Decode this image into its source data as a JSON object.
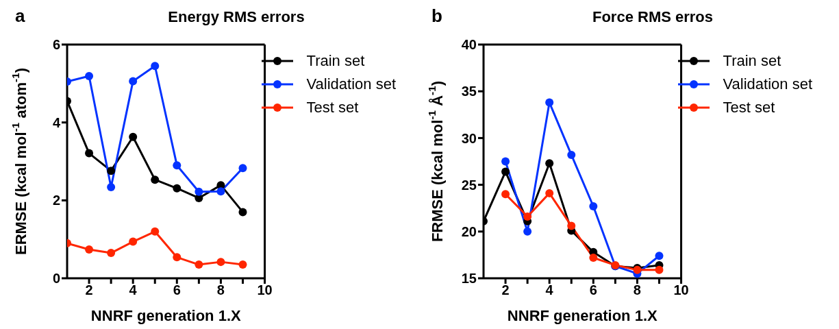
{
  "chart_data": [
    {
      "type": "line",
      "title": "Energy RMS errors",
      "xlabel": "NNRF generation 1.X",
      "ylabel": "ERMSE (kcal mol$^{-1}$ atom$^{-1}$)",
      "annotations": [
        "a"
      ],
      "x": [
        1,
        2,
        3,
        4,
        5,
        6,
        7,
        8,
        9
      ],
      "series": [
        {
          "name": "Train set",
          "color": "#000000",
          "values": [
            4.55,
            3.21,
            2.76,
            3.63,
            2.53,
            2.31,
            2.06,
            2.39,
            1.7
          ]
        },
        {
          "name": "Validation set",
          "color": "#0433ff",
          "values": [
            5.05,
            5.19,
            2.34,
            5.06,
            5.45,
            2.9,
            2.22,
            2.23,
            2.83
          ]
        },
        {
          "name": "Test set",
          "color": "#ff2600",
          "values": [
            0.9,
            0.74,
            0.65,
            0.94,
            1.2,
            0.54,
            0.35,
            0.42,
            0.35
          ]
        }
      ],
      "xlim": [
        1,
        10
      ],
      "xticks": [
        2,
        {
          "value": 3,
          "label": null
        },
        4,
        {
          "value": 5,
          "label": null
        },
        6,
        {
          "value": 7,
          "label": null
        },
        8,
        {
          "value": 9,
          "label": null
        },
        10
      ],
      "ylim": [
        0,
        6
      ],
      "yticks": [
        0,
        2,
        4,
        6
      ],
      "legend": "top right",
      "marker": "circle",
      "line_style": "solid",
      "grid": false
    },
    {
      "type": "line",
      "title": "Force RMS erros",
      "xlabel": "NNRF generation 1.X",
      "ylabel": "FRMSE (kcal mol$^{-1}$ Å$^{-1}$)",
      "annotations": [
        "b"
      ],
      "x": [
        1,
        2,
        3,
        4,
        5,
        6,
        7,
        8,
        9
      ],
      "series": [
        {
          "name": "Train set",
          "color": "#000000",
          "values": [
            21.1,
            26.4,
            21.1,
            27.3,
            20.1,
            17.8,
            16.3,
            16.1,
            16.4
          ]
        },
        {
          "name": "Validation set",
          "color": "#0433ff",
          "values": [
            null,
            27.5,
            20.0,
            33.8,
            28.2,
            22.7,
            16.3,
            15.5,
            17.4
          ]
        },
        {
          "name": "Test set",
          "color": "#ff2600",
          "values": [
            null,
            24.0,
            21.6,
            24.1,
            20.6,
            17.2,
            16.4,
            15.9,
            15.9
          ]
        }
      ],
      "xlim": [
        1,
        10
      ],
      "xticks": [
        2,
        {
          "value": 3,
          "label": null
        },
        4,
        {
          "value": 5,
          "label": null
        },
        6,
        {
          "value": 7,
          "label": null
        },
        8,
        {
          "value": 9,
          "label": null
        },
        10
      ],
      "ylim": [
        15,
        40
      ],
      "yticks": [
        15,
        20,
        25,
        30,
        35,
        40
      ],
      "legend": "top right",
      "marker": "circle",
      "line_style": "solid",
      "grid": false
    }
  ]
}
